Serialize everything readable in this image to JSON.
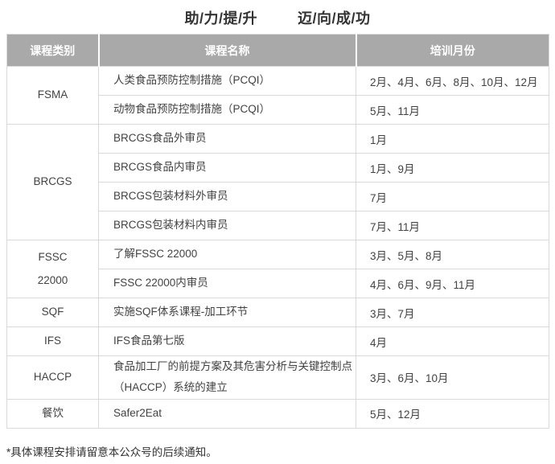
{
  "title": {
    "part1": "助/力/提/升",
    "part2": "迈/向/成/功"
  },
  "colors": {
    "header_bg": "#a9a9a9",
    "header_text": "#ffffff",
    "body_text": "#424242",
    "border": "#d9d9d9",
    "title_text": "#333333"
  },
  "table": {
    "headers": [
      "课程类别",
      "课程名称",
      "培训月份"
    ],
    "groups": [
      {
        "category": "FSMA",
        "courses": [
          {
            "name": "人类食品预防控制措施（PCQI）",
            "months": "2月、4月、6月、8月、10月、12月"
          },
          {
            "name": "动物食品预防控制措施（PCQI）",
            "months": "5月、11月"
          }
        ]
      },
      {
        "category": "BRCGS",
        "courses": [
          {
            "name": "BRCGS食品外审员",
            "months": "1月"
          },
          {
            "name": "BRCGS食品内审员",
            "months": "1月、9月"
          },
          {
            "name": "BRCGS包装材料外审员",
            "months": "7月"
          },
          {
            "name": "BRCGS包装材料内审员",
            "months": "7月、11月"
          }
        ]
      },
      {
        "category": "FSSC\n22000",
        "courses": [
          {
            "name": "了解FSSC 22000",
            "months": "3月、5月、8月"
          },
          {
            "name": "FSSC 22000内审员",
            "months": "4月、6月、9月、11月"
          }
        ]
      },
      {
        "category": "SQF",
        "courses": [
          {
            "name": "实施SQF体系课程-加工环节",
            "months": "3月、7月"
          }
        ]
      },
      {
        "category": "IFS",
        "courses": [
          {
            "name": "IFS食品第七版",
            "months": "4月"
          }
        ]
      },
      {
        "category": "HACCP",
        "courses": [
          {
            "name": "食品加工厂的前提方案及其危害分析与关键控制点\n（HACCP）系统的建立",
            "months": "3月、6月、10月"
          }
        ]
      },
      {
        "category": "餐饮",
        "courses": [
          {
            "name": "Safer2Eat",
            "months": "5月、12月"
          }
        ]
      }
    ]
  },
  "footnote": "*具体课程安排请留意本公众号的后续通知。"
}
